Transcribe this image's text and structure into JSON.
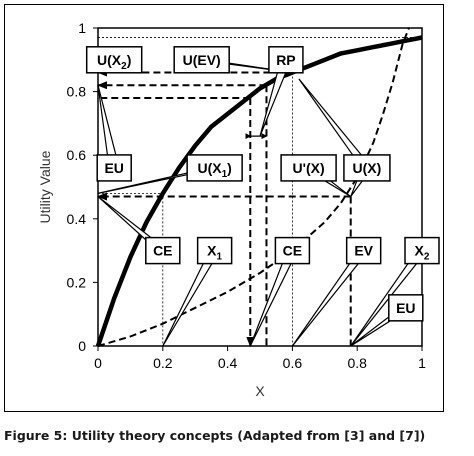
{
  "caption": "Figure 5: Utility theory concepts (Adapted from [3] and [7])",
  "chart_data": {
    "type": "line",
    "title": "",
    "xlabel": "X",
    "ylabel": "Utility Value",
    "xlim": [
      0,
      1
    ],
    "ylim": [
      0,
      1
    ],
    "xticks": [
      0,
      0.2,
      0.4,
      0.6,
      0.8,
      1
    ],
    "xtick_labels": [
      "0",
      "0.2",
      "0.4",
      "0.6",
      "0.8",
      "1"
    ],
    "yticks": [
      0,
      0.2,
      0.4,
      0.6,
      0.8,
      1
    ],
    "ytick_labels": [
      "0",
      "0.2",
      "0.4",
      "0.6",
      "0.8",
      "1"
    ],
    "grid": false,
    "series": [
      {
        "style": "solid-thick",
        "x": [
          0,
          0.05,
          0.1,
          0.15,
          0.2,
          0.25,
          0.3,
          0.35,
          0.4,
          0.45,
          0.5,
          0.55,
          0.6,
          0.65,
          0.7,
          0.75,
          0.8,
          0.85,
          0.9,
          0.95,
          1
        ],
        "y": [
          0,
          0.15,
          0.28,
          0.39,
          0.48,
          0.56,
          0.63,
          0.69,
          0.73,
          0.77,
          0.81,
          0.84,
          0.86,
          0.88,
          0.9,
          0.92,
          0.93,
          0.94,
          0.95,
          0.96,
          0.97
        ]
      },
      {
        "style": "dashed",
        "x": [
          0,
          0.1,
          0.2,
          0.3,
          0.4,
          0.5,
          0.6,
          0.7,
          0.75,
          0.8,
          0.85,
          0.88,
          0.91,
          0.94,
          0.96
        ],
        "y": [
          0,
          0.03,
          0.07,
          0.12,
          0.17,
          0.23,
          0.3,
          0.39,
          0.45,
          0.53,
          0.64,
          0.73,
          0.83,
          0.95,
          1.0
        ]
      }
    ],
    "reference_lines": [
      {
        "style": "dashed-arrow",
        "from": [
          0.6,
          0.86
        ],
        "to": [
          0,
          0.86
        ]
      },
      {
        "style": "dashed-arrow",
        "from": [
          0.52,
          0.82
        ],
        "to": [
          0,
          0.82
        ]
      },
      {
        "style": "dashed",
        "from": [
          0.47,
          0.78
        ],
        "to": [
          0,
          0.78
        ]
      },
      {
        "style": "dashed-arrow",
        "from": [
          0.47,
          0.78
        ],
        "to": [
          0.47,
          0
        ]
      },
      {
        "style": "dashed",
        "from": [
          0.52,
          0.82
        ],
        "to": [
          0.52,
          0
        ]
      },
      {
        "style": "dashed-arrow",
        "from": [
          0.78,
          0.47
        ],
        "to": [
          0,
          0.47
        ]
      },
      {
        "style": "dashed",
        "from": [
          0.78,
          0.47
        ],
        "to": [
          0.78,
          0
        ]
      },
      {
        "style": "dotted",
        "from": [
          0.2,
          0.48
        ],
        "to": [
          0.2,
          0
        ]
      },
      {
        "style": "dotted",
        "from": [
          0,
          0.48
        ],
        "to": [
          0.2,
          0.48
        ]
      },
      {
        "style": "dotted",
        "from": [
          0.6,
          0.86
        ],
        "to": [
          0.6,
          0
        ]
      },
      {
        "style": "dotted",
        "from": [
          0,
          0.97
        ],
        "to": [
          1,
          0.97
        ]
      }
    ],
    "rp_marker": {
      "from": [
        0.47,
        0.66
      ],
      "to": [
        0.52,
        0.66
      ]
    },
    "callouts": [
      {
        "text": "U(X",
        "sub": "2",
        "post": ")",
        "box": [
          0.05,
          0.9
        ],
        "points": [
          [
            0.0,
            0.86
          ]
        ]
      },
      {
        "text": "U(EV)",
        "box": [
          0.32,
          0.9
        ],
        "points": [
          [
            0.6,
            0.86
          ]
        ]
      },
      {
        "text": "RP",
        "box": [
          0.58,
          0.9
        ],
        "points": [
          [
            0.5,
            0.66
          ]
        ]
      },
      {
        "text": "EU",
        "box": [
          0.05,
          0.56
        ],
        "points": [
          [
            0.0,
            0.82
          ]
        ]
      },
      {
        "text": "U(X",
        "sub": "1",
        "post": ")",
        "box": [
          0.36,
          0.56
        ],
        "points": [
          [
            0.0,
            0.48
          ]
        ]
      },
      {
        "text": "U'(X)",
        "box": [
          0.65,
          0.56
        ],
        "points": [
          [
            0.78,
            0.47
          ]
        ]
      },
      {
        "text": "U(X)",
        "box": [
          0.83,
          0.56
        ],
        "points": [
          [
            0.78,
            0.47
          ],
          [
            0.62,
            0.84
          ]
        ]
      },
      {
        "text": "CE",
        "box": [
          0.2,
          0.3
        ],
        "points": [
          [
            0.0,
            0.47
          ]
        ]
      },
      {
        "text": "X",
        "sub": "1",
        "box": [
          0.36,
          0.3
        ],
        "points": [
          [
            0.2,
            0.0
          ]
        ]
      },
      {
        "text": "CE",
        "box": [
          0.6,
          0.3
        ],
        "points": [
          [
            0.47,
            0.0
          ]
        ]
      },
      {
        "text": "EV",
        "box": [
          0.82,
          0.3
        ],
        "points": [
          [
            0.6,
            0.0
          ]
        ]
      },
      {
        "text": "X",
        "sub": "2",
        "box": [
          1.0,
          0.3
        ],
        "points": [
          [
            0.78,
            0.0
          ]
        ]
      },
      {
        "text": "EU",
        "box": [
          0.95,
          0.12
        ],
        "points": [
          [
            0.78,
            0.0
          ]
        ]
      }
    ]
  }
}
